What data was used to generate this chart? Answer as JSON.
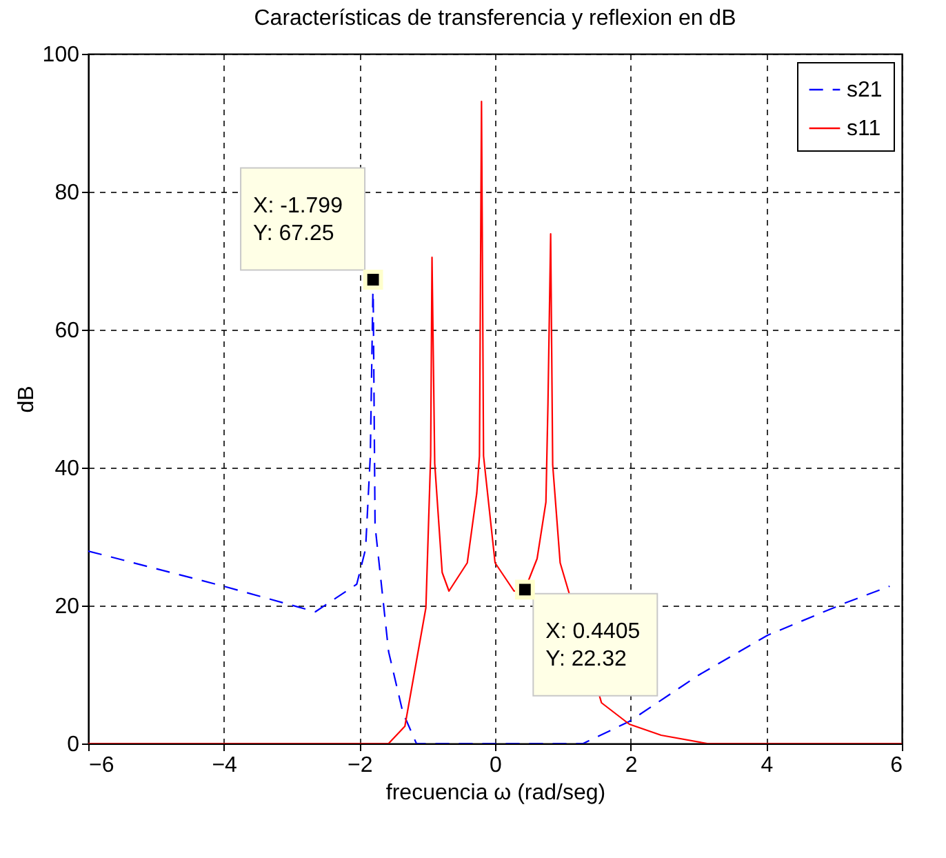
{
  "chart_data": {
    "type": "line",
    "title": "Características de transferencia y reflexion en dB",
    "xlabel": "frecuencia ω (rad/seg)",
    "ylabel": "dB",
    "xlim": [
      -6,
      6
    ],
    "ylim": [
      0,
      100
    ],
    "xticks": [
      -6,
      -4,
      -2,
      0,
      2,
      4,
      6
    ],
    "yticks": [
      0,
      20,
      40,
      60,
      80,
      100
    ],
    "grid": true,
    "legend": "top right",
    "marker": "none",
    "series": [
      {
        "name": "s21",
        "color": "#0000ff",
        "line_style": "dashed",
        "x": [
          -6.0,
          -4.0,
          -2.65,
          -2.04,
          -1.91,
          -1.84,
          -1.799,
          -1.77,
          -1.57,
          -1.36,
          -1.16,
          1.3,
          1.98,
          3.0,
          4.02,
          5.17,
          5.82
        ],
        "values": [
          27.9,
          22.8,
          19.1,
          23.1,
          28.2,
          41.7,
          67.25,
          31.6,
          13.3,
          4.5,
          0,
          0,
          3.2,
          9.9,
          15.7,
          20.4,
          22.8
        ]
      },
      {
        "name": "s11",
        "color": "#ff0000",
        "line_style": "solid",
        "x": [
          -6.0,
          -1.57,
          -1.33,
          -1.02,
          -0.95,
          -0.93,
          -0.89,
          -0.78,
          -0.68,
          -0.41,
          -0.27,
          -0.23,
          -0.2,
          -0.17,
          0.0,
          0.28,
          0.4405,
          0.62,
          0.75,
          0.78,
          0.82,
          0.85,
          0.96,
          1.57,
          1.98,
          2.45,
          3.13,
          6.0
        ],
        "values": [
          0,
          0,
          2.5,
          19.7,
          41.7,
          70.5,
          40.6,
          24.8,
          22.1,
          26.2,
          36.3,
          41.7,
          93.1,
          41.7,
          26.2,
          22.1,
          22.32,
          26.8,
          35.0,
          49.2,
          73.9,
          40.4,
          26.2,
          5.9,
          2.8,
          1.2,
          0,
          0
        ]
      }
    ],
    "annotations": [
      {
        "text": "X: -1.799\nY: 67.25",
        "x": -1.799,
        "y": 67.25
      },
      {
        "text": "X: 0.4405\nY: 22.32",
        "x": 0.4405,
        "y": 22.32
      }
    ]
  }
}
